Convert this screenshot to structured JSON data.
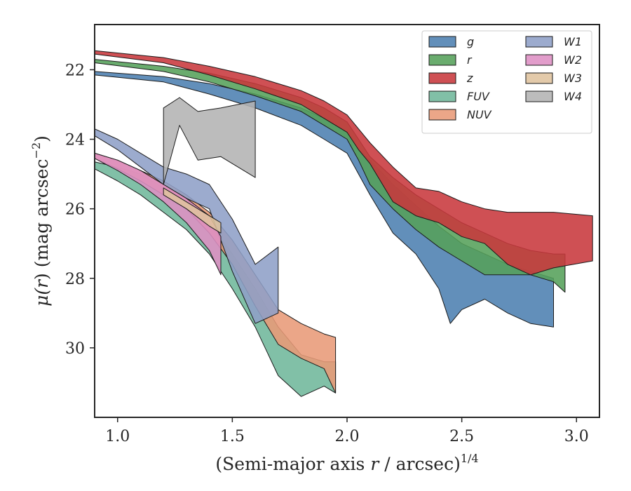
{
  "chart_data": {
    "type": "area",
    "title": "",
    "xlabel": "(Semi-major axis r / arcsec)^1/4",
    "xlabel_parts": {
      "main": "(Semi-major axis ",
      "var": "r",
      "rest": " / arcsec)",
      "sup": "1/4"
    },
    "ylabel": "μ(r) (mag arcsec−2)",
    "ylabel_parts": {
      "main": "μ(",
      "var": "r",
      "rest": ") (mag arcsec",
      "sup": "−2",
      "close": ")"
    },
    "xlim": [
      0.9,
      3.1
    ],
    "ylim": [
      32.0,
      20.7
    ],
    "y_inverted": true,
    "xticks": [
      1.0,
      1.5,
      2.0,
      2.5,
      3.0
    ],
    "xtick_labels": [
      "1.0",
      "1.5",
      "2.0",
      "2.5",
      "3.0"
    ],
    "yticks": [
      22,
      24,
      26,
      28,
      30
    ],
    "ytick_labels": [
      "22",
      "24",
      "26",
      "28",
      "30"
    ],
    "grid": false,
    "legend_position": "top-right",
    "legend_columns": 2,
    "series": [
      {
        "name": "g",
        "color": "#4c7fb0",
        "upper": [
          [
            0.9,
            22.05
          ],
          [
            1.2,
            22.2
          ],
          [
            1.4,
            22.4
          ],
          [
            1.6,
            22.7
          ],
          [
            1.8,
            23.1
          ],
          [
            1.9,
            23.4
          ],
          [
            2.0,
            23.8
          ],
          [
            2.05,
            24.3
          ],
          [
            2.1,
            24.6
          ],
          [
            2.2,
            25.3
          ],
          [
            2.3,
            25.9
          ],
          [
            2.4,
            26.5
          ],
          [
            2.5,
            27.0
          ],
          [
            2.6,
            27.3
          ],
          [
            2.7,
            27.6
          ],
          [
            2.8,
            27.8
          ],
          [
            2.9,
            28.0
          ]
        ],
        "lower": [
          [
            0.9,
            22.15
          ],
          [
            1.2,
            22.35
          ],
          [
            1.4,
            22.7
          ],
          [
            1.6,
            23.1
          ],
          [
            1.8,
            23.6
          ],
          [
            1.9,
            24.0
          ],
          [
            2.0,
            24.4
          ],
          [
            2.05,
            25.0
          ],
          [
            2.1,
            25.6
          ],
          [
            2.2,
            26.7
          ],
          [
            2.3,
            27.3
          ],
          [
            2.4,
            28.3
          ],
          [
            2.45,
            29.3
          ],
          [
            2.5,
            28.9
          ],
          [
            2.6,
            28.6
          ],
          [
            2.7,
            29.0
          ],
          [
            2.8,
            29.3
          ],
          [
            2.9,
            29.4
          ]
        ]
      },
      {
        "name": "r",
        "color": "#55a05a",
        "upper": [
          [
            0.9,
            21.7
          ],
          [
            1.2,
            21.9
          ],
          [
            1.4,
            22.1
          ],
          [
            1.6,
            22.4
          ],
          [
            1.8,
            22.8
          ],
          [
            1.9,
            23.1
          ],
          [
            2.0,
            23.5
          ],
          [
            2.05,
            24.0
          ],
          [
            2.1,
            24.5
          ],
          [
            2.2,
            25.1
          ],
          [
            2.3,
            25.6
          ],
          [
            2.4,
            26.0
          ],
          [
            2.5,
            26.4
          ],
          [
            2.6,
            26.7
          ],
          [
            2.7,
            27.0
          ],
          [
            2.8,
            27.2
          ],
          [
            2.9,
            27.3
          ],
          [
            2.95,
            27.3
          ]
        ],
        "lower": [
          [
            0.9,
            21.8
          ],
          [
            1.2,
            22.05
          ],
          [
            1.4,
            22.35
          ],
          [
            1.6,
            22.75
          ],
          [
            1.8,
            23.2
          ],
          [
            1.9,
            23.6
          ],
          [
            2.0,
            24.0
          ],
          [
            2.05,
            24.6
          ],
          [
            2.1,
            25.3
          ],
          [
            2.2,
            26.0
          ],
          [
            2.3,
            26.6
          ],
          [
            2.4,
            27.1
          ],
          [
            2.5,
            27.5
          ],
          [
            2.6,
            27.9
          ],
          [
            2.7,
            27.9
          ],
          [
            2.8,
            27.9
          ],
          [
            2.9,
            28.1
          ],
          [
            2.95,
            28.4
          ]
        ]
      },
      {
        "name": "z",
        "color": "#c8383c",
        "upper": [
          [
            0.9,
            21.45
          ],
          [
            1.2,
            21.65
          ],
          [
            1.4,
            21.9
          ],
          [
            1.6,
            22.2
          ],
          [
            1.8,
            22.6
          ],
          [
            1.9,
            22.9
          ],
          [
            2.0,
            23.3
          ],
          [
            2.05,
            23.7
          ],
          [
            2.1,
            24.1
          ],
          [
            2.2,
            24.8
          ],
          [
            2.3,
            25.4
          ],
          [
            2.4,
            25.5
          ],
          [
            2.5,
            25.8
          ],
          [
            2.6,
            26.0
          ],
          [
            2.7,
            26.1
          ],
          [
            2.8,
            26.1
          ],
          [
            2.9,
            26.1
          ],
          [
            3.07,
            26.2
          ]
        ],
        "lower": [
          [
            0.9,
            21.55
          ],
          [
            1.2,
            21.8
          ],
          [
            1.4,
            22.15
          ],
          [
            1.6,
            22.55
          ],
          [
            1.8,
            23.0
          ],
          [
            1.9,
            23.4
          ],
          [
            2.0,
            23.8
          ],
          [
            2.05,
            24.3
          ],
          [
            2.1,
            24.7
          ],
          [
            2.2,
            25.8
          ],
          [
            2.3,
            26.2
          ],
          [
            2.4,
            26.4
          ],
          [
            2.5,
            26.8
          ],
          [
            2.6,
            27.0
          ],
          [
            2.7,
            27.6
          ],
          [
            2.8,
            27.9
          ],
          [
            2.9,
            27.7
          ],
          [
            3.07,
            27.5
          ]
        ]
      },
      {
        "name": "FUV",
        "color": "#6fb79b",
        "upper": [
          [
            0.9,
            24.65
          ],
          [
            1.0,
            24.8
          ],
          [
            1.1,
            25.0
          ],
          [
            1.2,
            25.4
          ],
          [
            1.3,
            25.8
          ],
          [
            1.4,
            26.4
          ],
          [
            1.5,
            27.3
          ],
          [
            1.6,
            28.3
          ],
          [
            1.7,
            29.4
          ],
          [
            1.8,
            30.2
          ],
          [
            1.9,
            30.4
          ],
          [
            1.95,
            30.4
          ]
        ],
        "lower": [
          [
            0.9,
            24.85
          ],
          [
            1.0,
            25.2
          ],
          [
            1.1,
            25.6
          ],
          [
            1.2,
            26.1
          ],
          [
            1.3,
            26.6
          ],
          [
            1.4,
            27.3
          ],
          [
            1.5,
            28.3
          ],
          [
            1.6,
            29.4
          ],
          [
            1.7,
            30.8
          ],
          [
            1.8,
            31.4
          ],
          [
            1.9,
            31.1
          ],
          [
            1.95,
            31.3
          ]
        ]
      },
      {
        "name": "NUV",
        "color": "#e89a77",
        "upper": [
          [
            0.9,
            24.4
          ],
          [
            1.0,
            24.6
          ],
          [
            1.1,
            24.9
          ],
          [
            1.2,
            25.2
          ],
          [
            1.3,
            25.6
          ],
          [
            1.4,
            26.1
          ],
          [
            1.5,
            26.9
          ],
          [
            1.6,
            27.9
          ],
          [
            1.7,
            28.9
          ],
          [
            1.8,
            29.3
          ],
          [
            1.9,
            29.6
          ],
          [
            1.95,
            29.7
          ]
        ],
        "lower": [
          [
            0.9,
            24.55
          ],
          [
            1.0,
            24.85
          ],
          [
            1.1,
            25.2
          ],
          [
            1.2,
            25.6
          ],
          [
            1.3,
            26.0
          ],
          [
            1.4,
            26.7
          ],
          [
            1.5,
            27.6
          ],
          [
            1.6,
            28.8
          ],
          [
            1.7,
            29.9
          ],
          [
            1.8,
            30.3
          ],
          [
            1.9,
            30.6
          ],
          [
            1.95,
            31.3
          ]
        ]
      },
      {
        "name": "W1",
        "color": "#8e9fc7",
        "upper": [
          [
            0.9,
            23.7
          ],
          [
            1.0,
            24.0
          ],
          [
            1.1,
            24.4
          ],
          [
            1.2,
            24.8
          ],
          [
            1.3,
            25.0
          ],
          [
            1.4,
            25.3
          ],
          [
            1.5,
            26.3
          ],
          [
            1.6,
            27.6
          ],
          [
            1.7,
            27.1
          ]
        ],
        "lower": [
          [
            0.9,
            23.9
          ],
          [
            1.0,
            24.3
          ],
          [
            1.1,
            24.8
          ],
          [
            1.2,
            25.3
          ],
          [
            1.3,
            25.7
          ],
          [
            1.4,
            26.0
          ],
          [
            1.5,
            27.8
          ],
          [
            1.6,
            29.3
          ],
          [
            1.7,
            29.0
          ]
        ]
      },
      {
        "name": "W2",
        "color": "#de8fc4",
        "upper": [
          [
            0.9,
            24.4
          ],
          [
            1.0,
            24.6
          ],
          [
            1.1,
            24.9
          ],
          [
            1.2,
            25.3
          ],
          [
            1.3,
            25.7
          ],
          [
            1.4,
            26.2
          ],
          [
            1.45,
            26.8
          ]
        ],
        "lower": [
          [
            0.9,
            24.55
          ],
          [
            1.0,
            24.9
          ],
          [
            1.1,
            25.3
          ],
          [
            1.2,
            25.8
          ],
          [
            1.3,
            26.4
          ],
          [
            1.4,
            27.2
          ],
          [
            1.45,
            27.9
          ]
        ]
      },
      {
        "name": "W3",
        "color": "#dfc39e",
        "upper": [
          [
            1.2,
            25.4
          ],
          [
            1.3,
            25.8
          ],
          [
            1.4,
            26.2
          ],
          [
            1.45,
            26.4
          ]
        ],
        "lower": [
          [
            1.2,
            25.6
          ],
          [
            1.3,
            26.0
          ],
          [
            1.4,
            26.5
          ],
          [
            1.45,
            26.7
          ]
        ]
      },
      {
        "name": "W4",
        "color": "#b3b3b3",
        "upper": [
          [
            1.2,
            23.1
          ],
          [
            1.27,
            22.8
          ],
          [
            1.35,
            23.2
          ],
          [
            1.45,
            23.1
          ],
          [
            1.6,
            22.9
          ]
        ],
        "lower": [
          [
            1.2,
            25.3
          ],
          [
            1.27,
            23.6
          ],
          [
            1.35,
            24.6
          ],
          [
            1.45,
            24.5
          ],
          [
            1.6,
            25.1
          ]
        ]
      }
    ]
  }
}
